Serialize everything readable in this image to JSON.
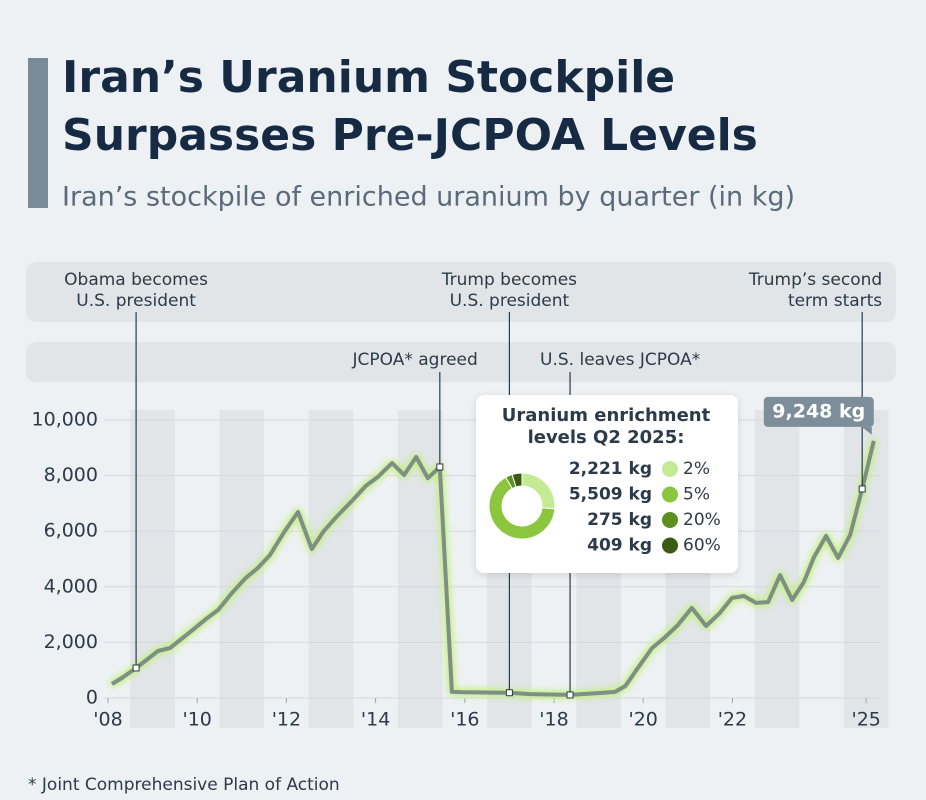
{
  "chart_data": [
    {
      "type": "line",
      "title": "Iran’s Uranium Stockpile Surpasses Pre-JCPOA Levels",
      "subtitle": "Iran’s stockpile of enriched uranium by quarter (in kg)",
      "x": [
        2008.09,
        2008.31,
        2008.63,
        2009.12,
        2009.39,
        2009.84,
        2010.17,
        2010.47,
        2010.78,
        2011.09,
        2011.36,
        2011.63,
        2011.95,
        2012.26,
        2012.57,
        2012.84,
        2013.16,
        2013.47,
        2013.78,
        2014.05,
        2014.37,
        2014.64,
        2014.91,
        2015.17,
        2015.44,
        2015.71,
        2016.0,
        2016.3,
        2016.6,
        2017.0,
        2017.46,
        2018.36,
        2019.03,
        2019.37,
        2019.6,
        2019.88,
        2020.2,
        2020.47,
        2020.78,
        2021.09,
        2021.41,
        2021.72,
        2021.99,
        2022.26,
        2022.53,
        2022.8,
        2023.07,
        2023.34,
        2023.6,
        2023.83,
        2024.1,
        2024.37,
        2024.64,
        2024.91,
        2025.17
      ],
      "values": [
        504,
        720,
        1080,
        1690,
        1800,
        2370,
        2810,
        3170,
        3780,
        4320,
        4680,
        5140,
        5970,
        6690,
        5360,
        6010,
        6580,
        7090,
        7630,
        7950,
        8450,
        8020,
        8670,
        7910,
        8310,
        220,
        210,
        200,
        195,
        190,
        140,
        110,
        180,
        220,
        430,
        1080,
        1800,
        2160,
        2630,
        3240,
        2590,
        3060,
        3600,
        3670,
        3420,
        3450,
        4420,
        3530,
        4170,
        5070,
        5830,
        5040,
        5860,
        7520,
        9248
      ],
      "value_labels": [
        null,
        null,
        null,
        null,
        null,
        null,
        null,
        null,
        null,
        null,
        null,
        null,
        null,
        null,
        null,
        null,
        null,
        null,
        null,
        null,
        null,
        null,
        null,
        null,
        null,
        null,
        null,
        null,
        null,
        null,
        null,
        null,
        null,
        null,
        null,
        null,
        null,
        null,
        null,
        null,
        null,
        null,
        null,
        null,
        null,
        null,
        null,
        null,
        null,
        null,
        null,
        null,
        null,
        null,
        "9,248 kg"
      ],
      "color": "#7f8e86",
      "xlim": [
        2007.6,
        2025.5
      ],
      "xticks": [
        {
          "value": 2008,
          "label": "'08"
        },
        {
          "value": 2010,
          "label": "'10"
        },
        {
          "value": 2012,
          "label": "'12"
        },
        {
          "value": 2014,
          "label": "'14"
        },
        {
          "value": 2016,
          "label": "'16"
        },
        {
          "value": 2018,
          "label": "'18"
        },
        {
          "value": 2020,
          "label": "'20"
        },
        {
          "value": 2022,
          "label": "'22"
        },
        {
          "value": 2025,
          "label": "'25"
        }
      ],
      "ylim": [
        0,
        10000
      ],
      "yticks": [
        0,
        {
          "value": 2000,
          "label": "2,000"
        },
        {
          "value": 4000,
          "label": "4,000"
        },
        {
          "value": 6000,
          "label": "6,000"
        },
        {
          "value": 8000,
          "label": "8,000"
        },
        {
          "value": 10000,
          "label": "10,000"
        }
      ],
      "annotations": [
        {
          "lines": [
            "Obama becomes",
            "U.S. president"
          ],
          "x": 2008.63
        },
        {
          "lines": [
            "JCPOA* agreed"
          ],
          "x": 2015.44
        },
        {
          "lines": [
            "Trump becomes",
            "U.S. president"
          ],
          "x": 2017.0
        },
        {
          "lines": [
            "U.S. leaves JCPOA*"
          ],
          "x": 2018.36
        },
        {
          "lines": [
            "Trump’s second",
            "term starts"
          ],
          "x": 2024.91
        }
      ],
      "footnote": "* Joint Comprehensive Plan of Action"
    },
    {
      "type": "pie",
      "title": [
        "Uranium enrichment",
        "levels Q2 2025:"
      ],
      "categories": [
        "2%",
        "5%",
        "20%",
        "60%"
      ],
      "values": [
        2221,
        5509,
        275,
        409
      ],
      "value_labels": [
        "2,221 kg",
        "5,509 kg",
        "275 kg",
        "409 kg"
      ],
      "colors": [
        "#c4ea94",
        "#8cc63f",
        "#5e8f23",
        "#3b5a14"
      ]
    }
  ]
}
